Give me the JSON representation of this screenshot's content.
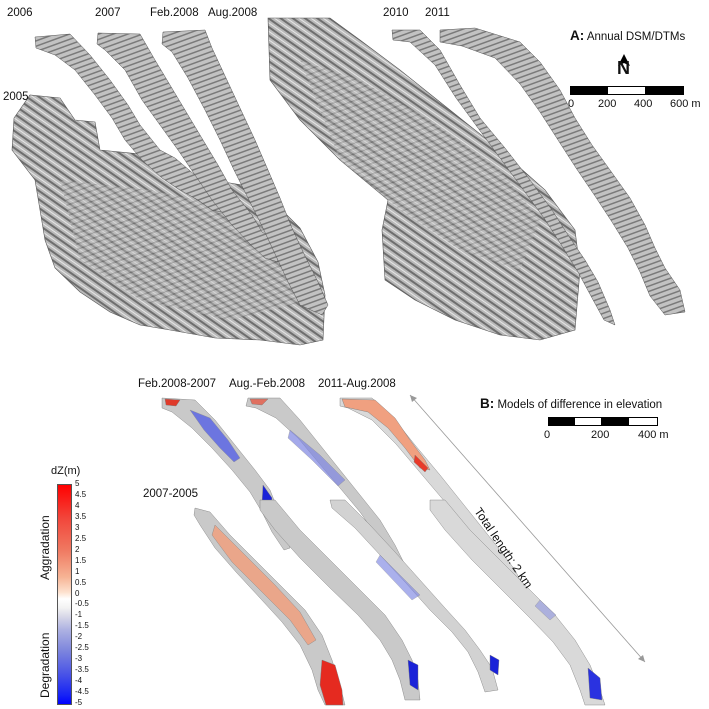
{
  "panel_a": {
    "letter": "A:",
    "title": "Annual DSM/DTMs",
    "years": [
      "2006",
      "2007",
      "Feb.2008",
      "Aug.2008",
      "2010",
      "2011",
      "2005"
    ],
    "north": "N",
    "scale_labels": [
      "0",
      "200",
      "400",
      "600 m"
    ]
  },
  "panel_b": {
    "letter": "B:",
    "title": "Models of difference in elevation",
    "labels": [
      "Feb.2008-2007",
      "Aug.-Feb.2008",
      "2011-Aug.2008",
      "2007-2005"
    ],
    "total_length": "Total length: 2 km",
    "scale_labels": [
      "0",
      "200",
      "400 m"
    ]
  },
  "legend": {
    "title": "dZ(m)",
    "ticks": [
      "5",
      "4.5",
      "4",
      "3.5",
      "3",
      "2.5",
      "2",
      "1.5",
      "1",
      "0.5",
      "0",
      "-0.5",
      "-1",
      "-1.5",
      "-2",
      "-2.5",
      "-3",
      "-3.5",
      "-4",
      "-4.5",
      "-5"
    ],
    "aggradation": "Aggradation",
    "degradation": "Degradation",
    "colors": {
      "max": "#ff0000",
      "mid": "#ffffff",
      "min": "#0000ff"
    }
  }
}
